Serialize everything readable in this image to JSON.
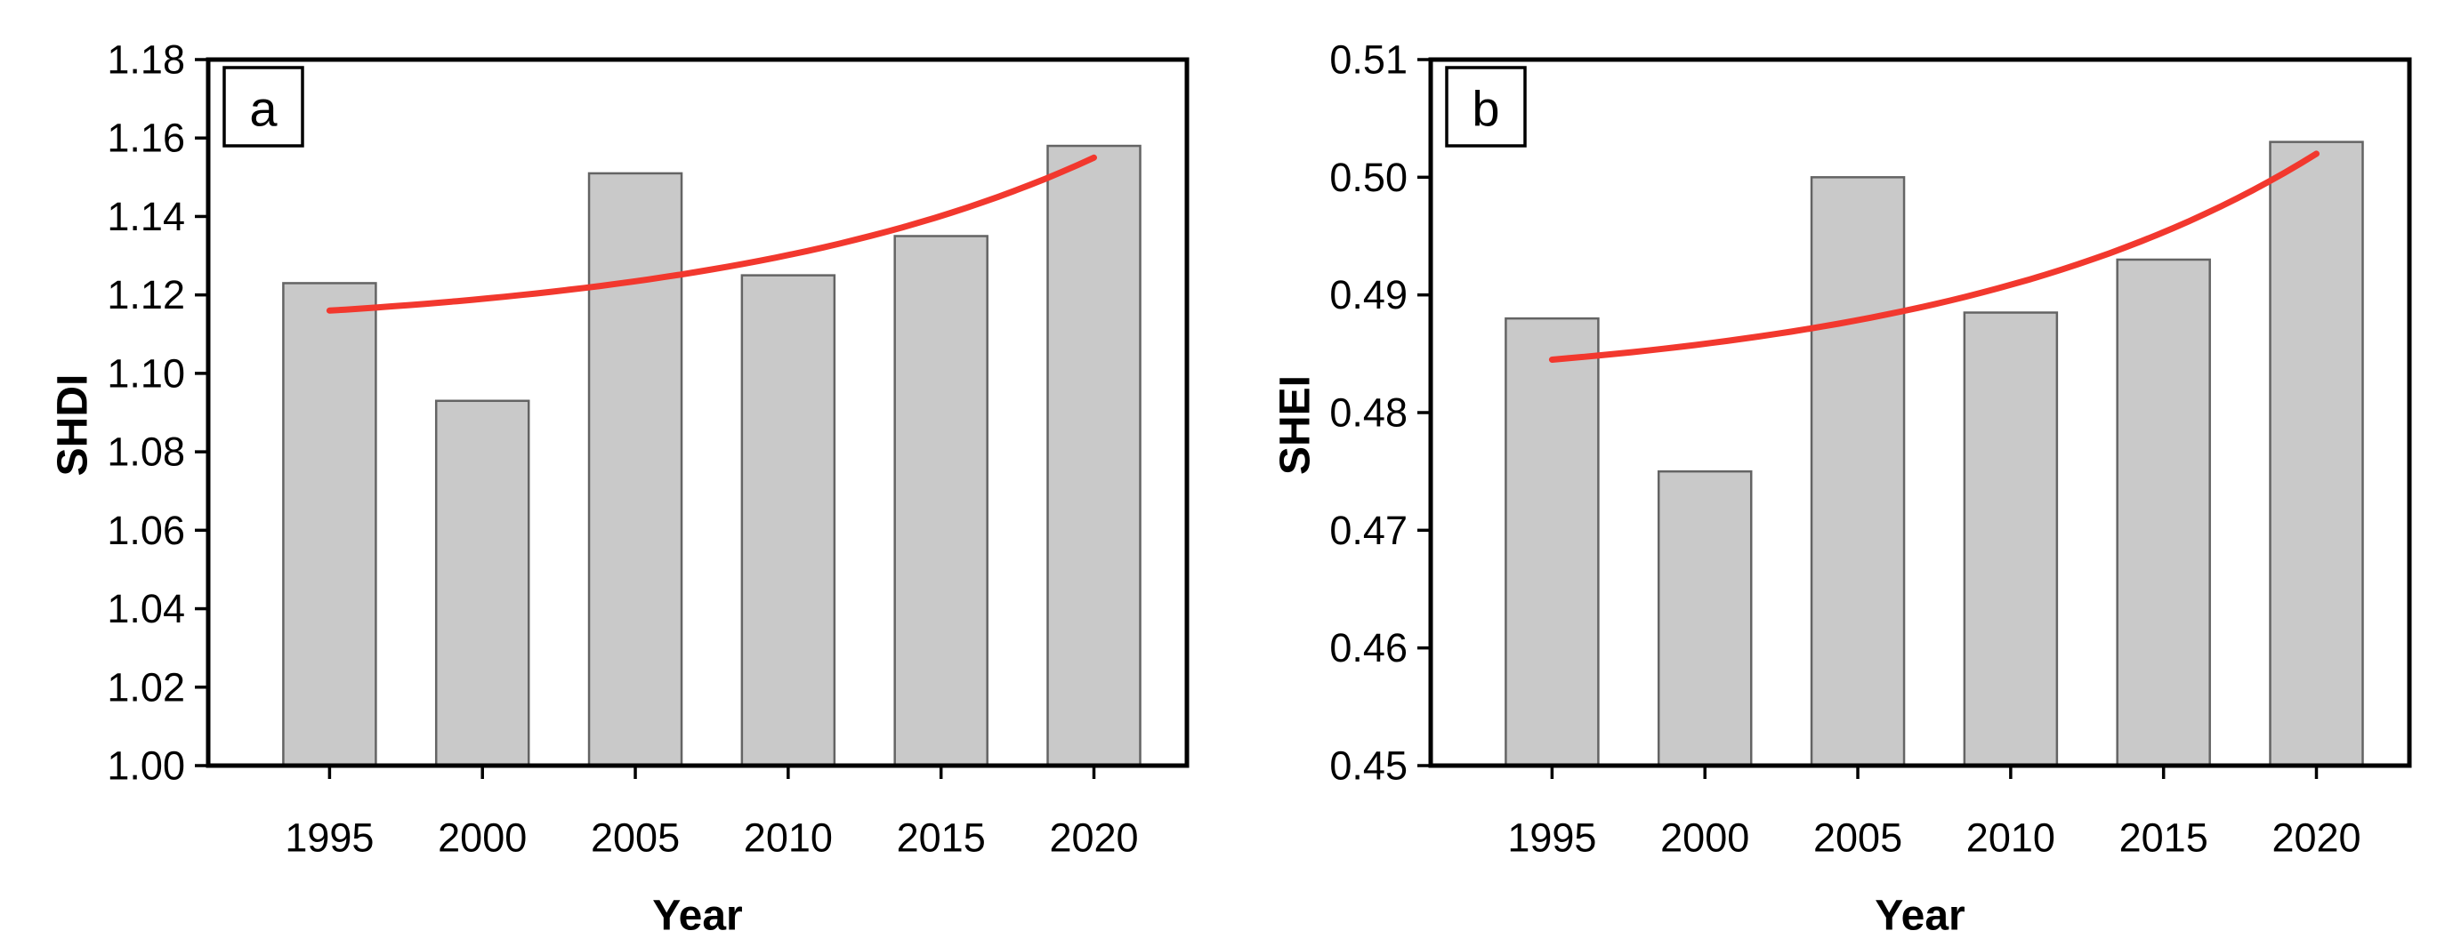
{
  "figure_caption": "",
  "style": {
    "background": "#ffffff",
    "bar_fill": "#c9c9c9",
    "bar_stroke": "#646464",
    "trend_color": "#f2382e",
    "axis_color": "#000000",
    "text_color": "#000000",
    "panel_box_fill": "#ffffff"
  },
  "chart_data": [
    {
      "type": "bar",
      "panel_label": "a",
      "title": "",
      "xlabel": "Year",
      "ylabel": "SHDI",
      "categories": [
        "1995",
        "2000",
        "2005",
        "2010",
        "2015",
        "2020"
      ],
      "values": [
        1.123,
        1.093,
        1.151,
        1.125,
        1.135,
        1.158
      ],
      "ylim": [
        1.0,
        1.18
      ],
      "ytick_step": 0.02,
      "ytick_decimals": 2,
      "grid": false,
      "legend": "none",
      "trend_line": {
        "type": "exponential",
        "start_value": 1.116,
        "end_value": 1.155,
        "curvature": 2.0
      }
    },
    {
      "type": "bar",
      "panel_label": "b",
      "title": "",
      "xlabel": "Year",
      "ylabel": "SHEI",
      "categories": [
        "1995",
        "2000",
        "2005",
        "2010",
        "2015",
        "2020"
      ],
      "values": [
        0.488,
        0.475,
        0.5,
        0.4885,
        0.493,
        0.503
      ],
      "ylim": [
        0.45,
        0.51
      ],
      "ytick_step": 0.01,
      "ytick_decimals": 2,
      "grid": false,
      "legend": "none",
      "trend_line": {
        "type": "exponential",
        "start_value": 0.4845,
        "end_value": 0.502,
        "curvature": 2.0
      }
    }
  ]
}
